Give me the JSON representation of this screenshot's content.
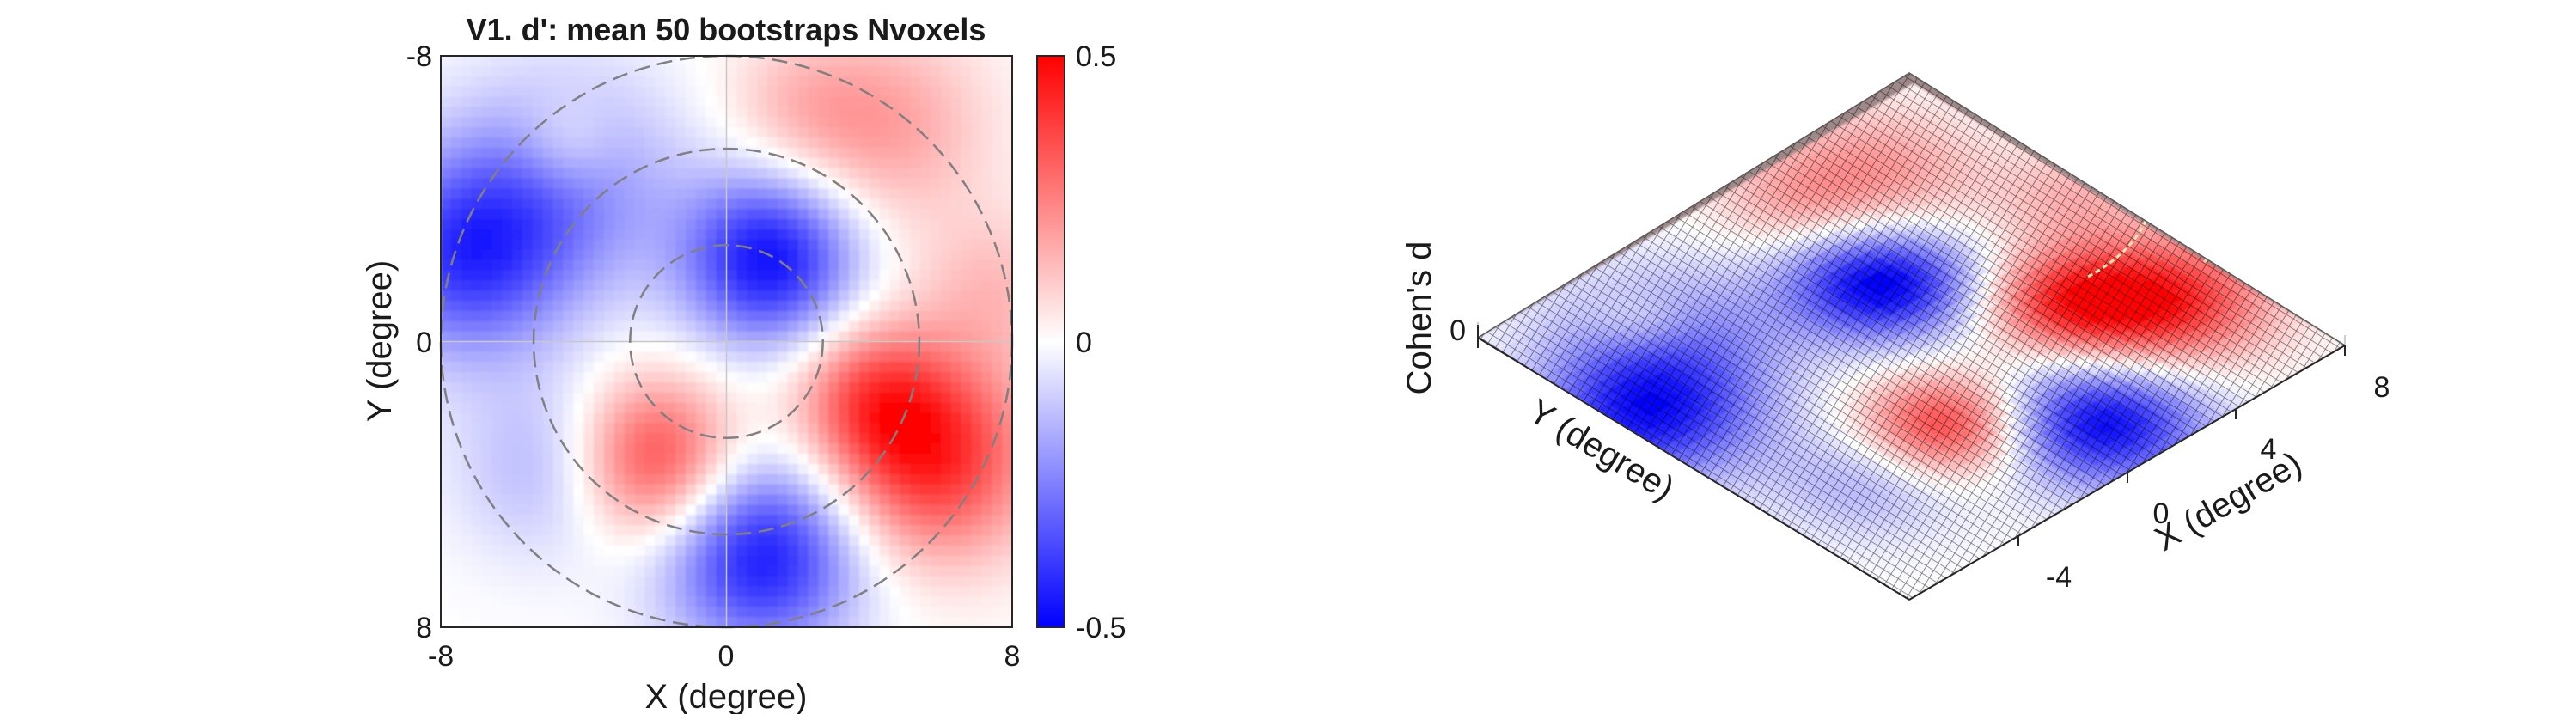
{
  "chart_data": [
    {
      "type": "heatmap",
      "title": "V1. d': mean 50 bootstraps Nvoxels",
      "xlabel": "X (degree)",
      "ylabel": "Y (degree)",
      "xlim": [
        -8,
        8
      ],
      "ylim": [
        -8,
        8
      ],
      "y_axis_reversed": true,
      "x_ticks": [
        "-8",
        "0",
        "8"
      ],
      "y_ticks": [
        "-8",
        "0",
        "8"
      ],
      "colorbar": {
        "range": [
          -0.5,
          0.5
        ],
        "ticks": [
          "0.5",
          "0",
          "-0.5"
        ],
        "colormap": "blue-white-red"
      },
      "colors": {
        "negative": "#0000ff",
        "zero": "#ffffff",
        "positive": "#ff0000",
        "circles": "#808080"
      },
      "eccentricity_circles_deg": [
        2.7,
        5.4,
        8.0
      ],
      "crosshair": true,
      "blobs": [
        {
          "x": 1.2,
          "y": -2.3,
          "value": -0.47,
          "sigma": 1.7
        },
        {
          "x": -7.3,
          "y": -2.4,
          "value": -0.38,
          "sigma": 2.0
        },
        {
          "x": -4.5,
          "y": -4.5,
          "value": -0.22,
          "sigma": 2.2
        },
        {
          "x": -5.0,
          "y": 3.5,
          "value": -0.15,
          "sigma": 1.8
        },
        {
          "x": 1.0,
          "y": 6.0,
          "value": -0.45,
          "sigma": 1.9
        },
        {
          "x": -2.0,
          "y": 3.3,
          "value": 0.38,
          "sigma": 1.6
        },
        {
          "x": 5.8,
          "y": 3.2,
          "value": 0.42,
          "sigma": 2.0
        },
        {
          "x": 4.0,
          "y": 1.5,
          "value": 0.25,
          "sigma": 1.5
        },
        {
          "x": 4.5,
          "y": -6.0,
          "value": 0.18,
          "sigma": 2.0
        },
        {
          "x": 2.0,
          "y": -6.5,
          "value": 0.1,
          "sigma": 1.5
        },
        {
          "x": -4.5,
          "y": -5.5,
          "value": 0.12,
          "sigma": 1.0
        },
        {
          "x": 7.5,
          "y": -1.5,
          "value": 0.12,
          "sigma": 1.5
        }
      ]
    },
    {
      "type": "surface",
      "zlabel": "Cohen's d",
      "xlabel": "X (degree)",
      "ylabel": "Y (degree)",
      "x_ticks": [
        "-4",
        "0",
        "4",
        "8"
      ],
      "z_ticks": [
        "0"
      ],
      "xlim": [
        -8,
        8
      ],
      "ylim": [
        -8,
        8
      ],
      "colormap": "blue-white-red",
      "mesh_edge_color": "#000000"
    }
  ]
}
